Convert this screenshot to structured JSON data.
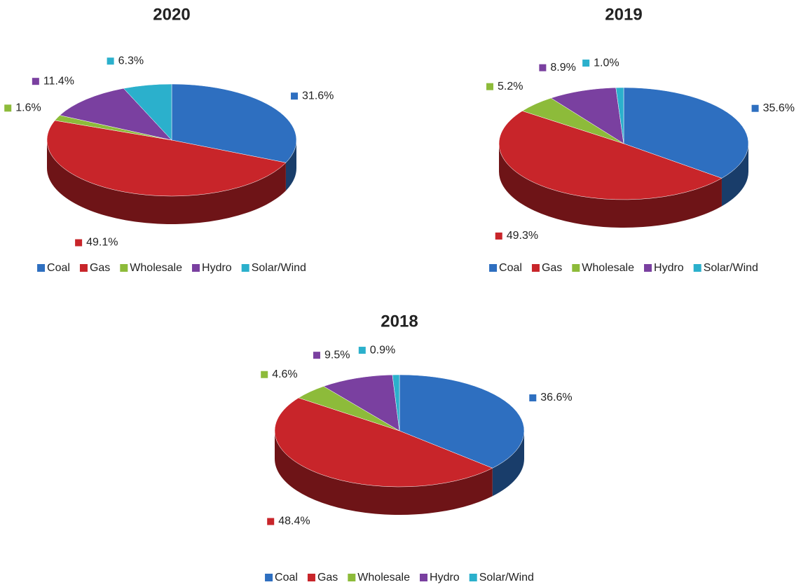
{
  "chart_data": [
    {
      "type": "pie",
      "title": "2020",
      "categories": [
        "Coal",
        "Gas",
        "Wholesale",
        "Hydro",
        "Solar/Wind"
      ],
      "values": [
        31.6,
        49.1,
        1.6,
        11.4,
        6.3
      ],
      "value_labels": [
        "31.6%",
        "49.1%",
        "1.6%",
        "11.4%",
        "6.3%"
      ],
      "colors": [
        "#2e6fc0",
        "#c8252a",
        "#8dbb3a",
        "#7a40a0",
        "#2bb0cc"
      ],
      "legend": "bottom"
    },
    {
      "type": "pie",
      "title": "2019",
      "categories": [
        "Coal",
        "Gas",
        "Wholesale",
        "Hydro",
        "Solar/Wind"
      ],
      "values": [
        35.6,
        49.3,
        5.2,
        8.9,
        1.0
      ],
      "value_labels": [
        "35.6%",
        "49.3%",
        "5.2%",
        "8.9%",
        "1.0%"
      ],
      "colors": [
        "#2e6fc0",
        "#c8252a",
        "#8dbb3a",
        "#7a40a0",
        "#2bb0cc"
      ],
      "legend": "bottom"
    },
    {
      "type": "pie",
      "title": "2018",
      "categories": [
        "Coal",
        "Gas",
        "Wholesale",
        "Hydro",
        "Solar/Wind"
      ],
      "values": [
        36.6,
        48.4,
        4.6,
        9.5,
        0.9
      ],
      "value_labels": [
        "36.6%",
        "48.4%",
        "4.6%",
        "9.5%",
        "0.9%"
      ],
      "colors": [
        "#2e6fc0",
        "#c8252a",
        "#8dbb3a",
        "#7a40a0",
        "#2bb0cc"
      ],
      "legend": "bottom"
    }
  ]
}
